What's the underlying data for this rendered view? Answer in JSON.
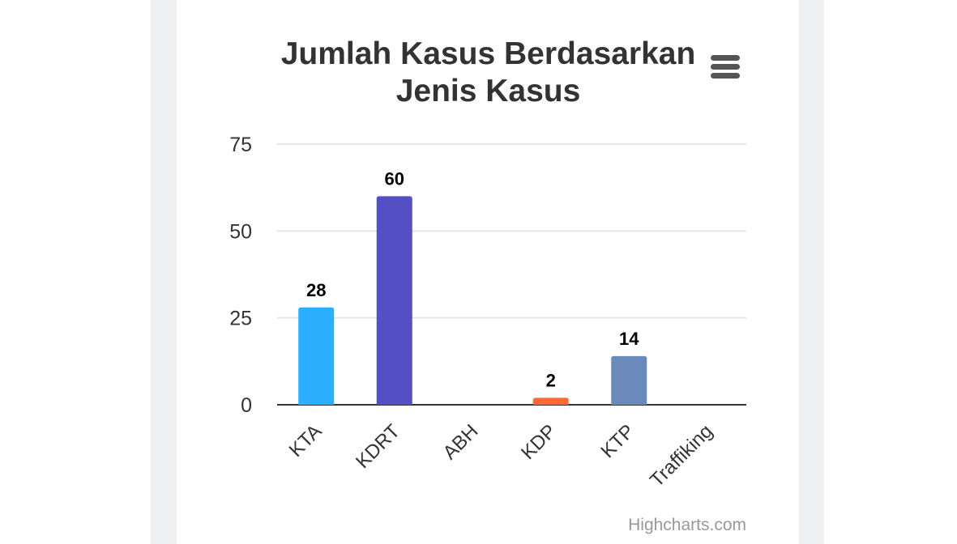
{
  "chart_data": {
    "type": "bar",
    "title": "Jumlah Kasus Berdasarkan Jenis Kasus",
    "categories": [
      "KTA",
      "KDRT",
      "ABH",
      "KDP",
      "KTP",
      "Traffiking"
    ],
    "values": [
      28,
      60,
      null,
      2,
      14,
      null
    ],
    "colors": [
      "#2caffe",
      "#544fc5",
      null,
      "#fe6a35",
      "#6b8abc",
      null
    ],
    "ylim": [
      0,
      75
    ],
    "yticks": [
      0,
      25,
      50,
      75
    ],
    "grid": true
  },
  "credits": "Highcharts.com"
}
